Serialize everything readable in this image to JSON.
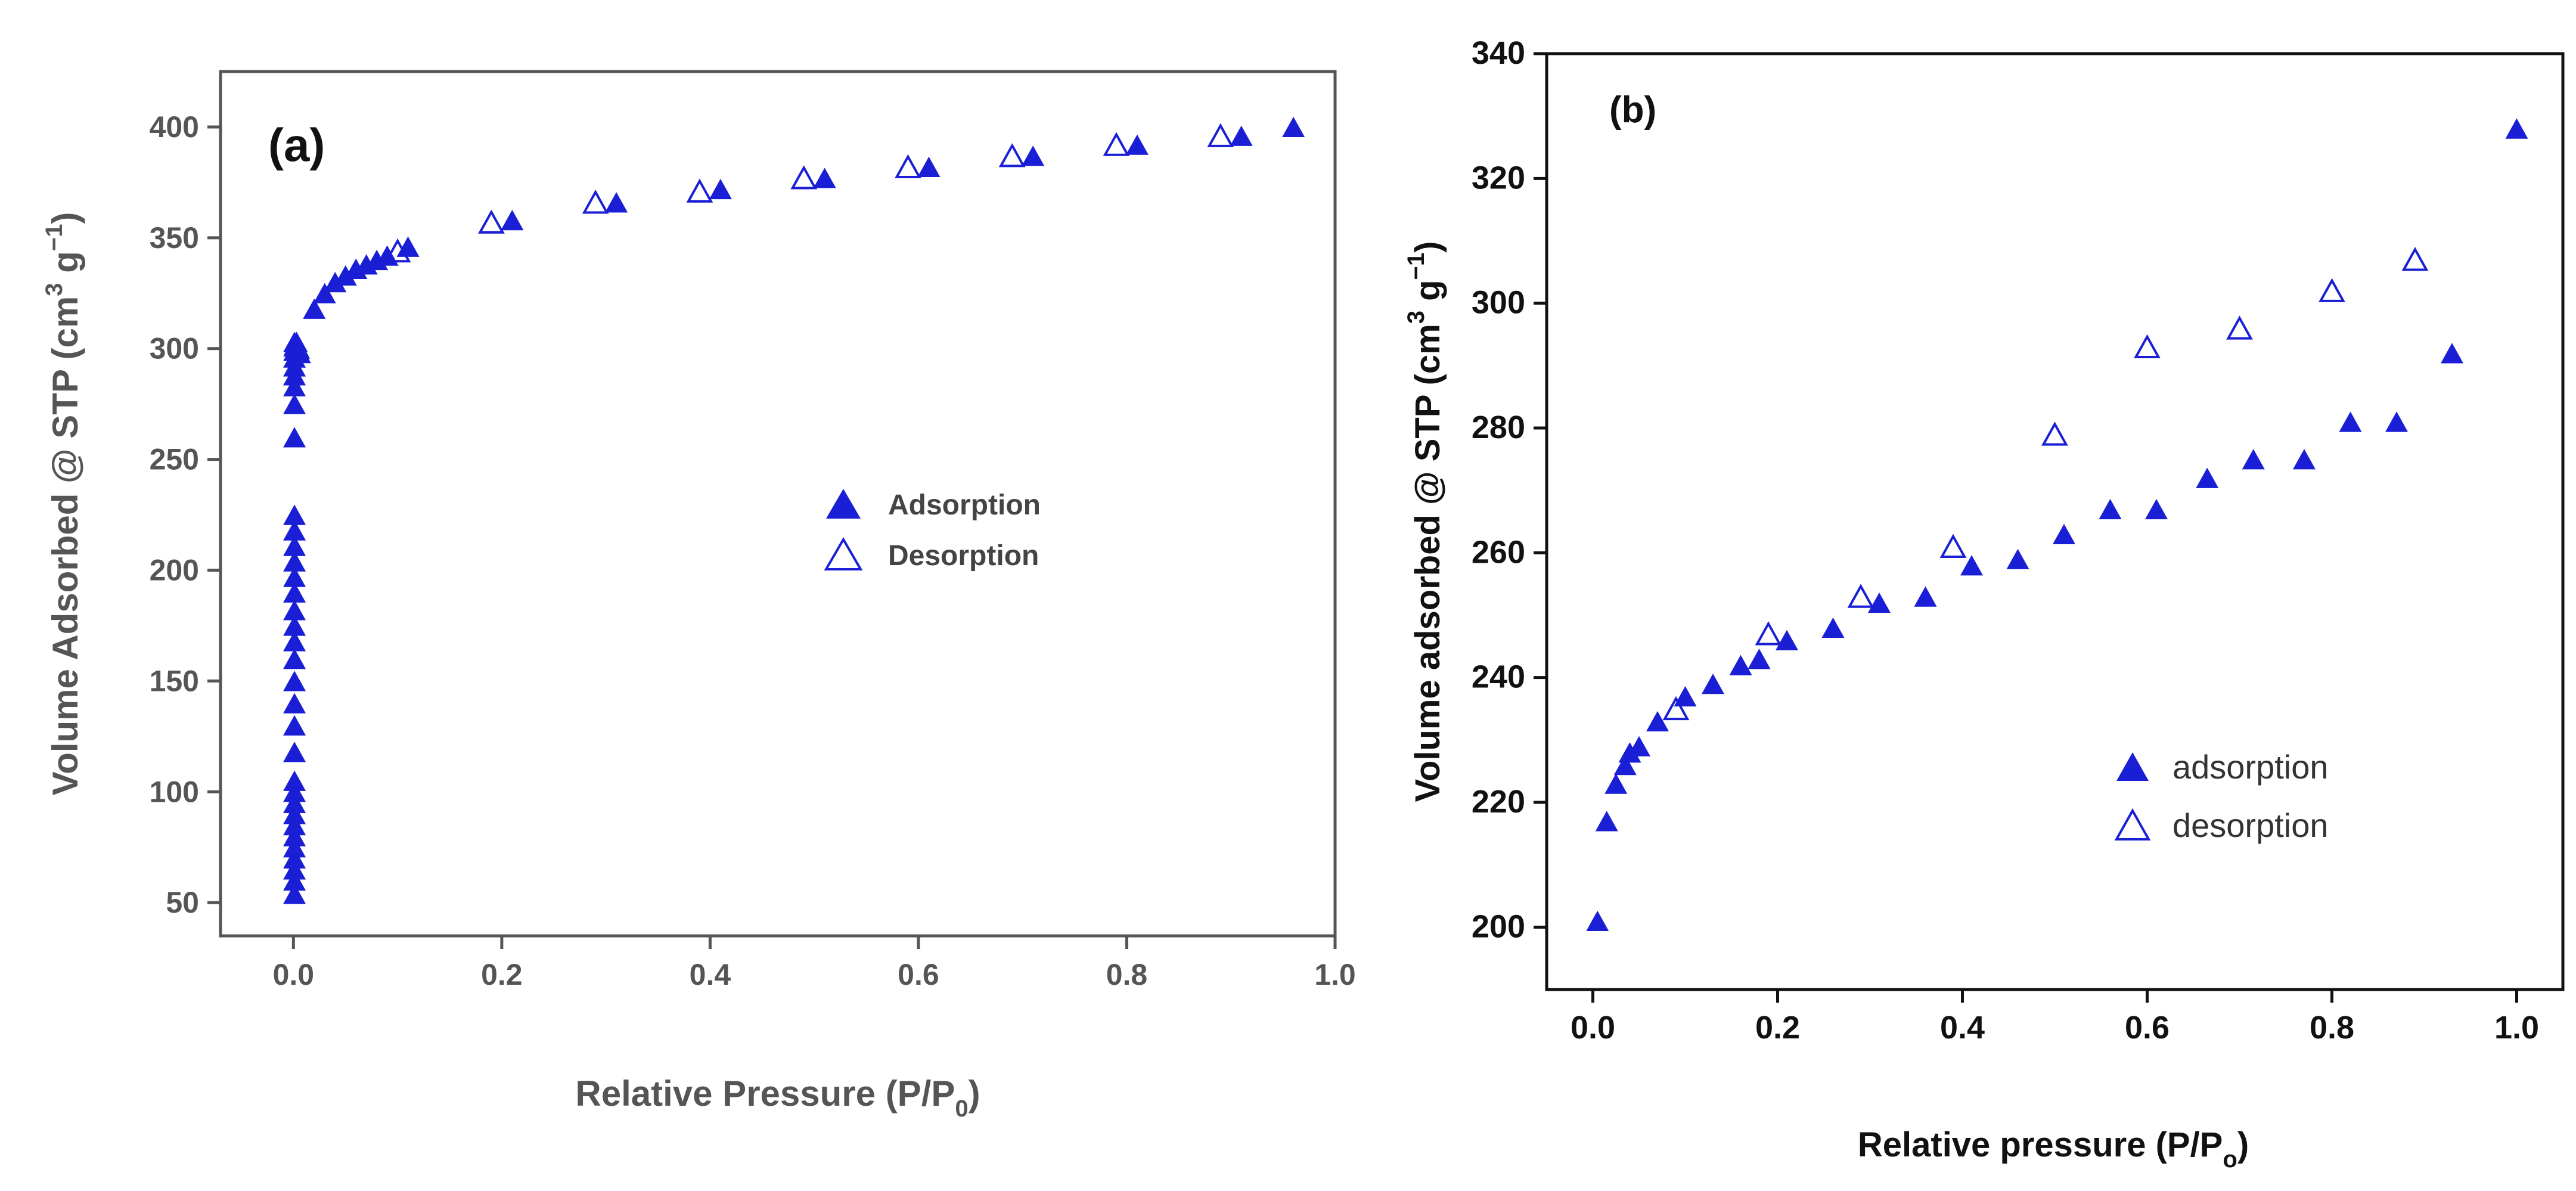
{
  "colors": {
    "marker": "#1a1fd6",
    "axis_a": "#555555",
    "axis_b": "#111111"
  },
  "chart_data": [
    {
      "type": "scatter",
      "panel_label": "(a)",
      "title": "",
      "xlabel": "Relative Pressure (P/P",
      "xlabel_sub": "0",
      "xlabel_end": ")",
      "ylabel": "Volume Adsorbed @ STP (cm",
      "ylabel_sup1": "3",
      "ylabel_mid": " g",
      "ylabel_sup2": "−1",
      "ylabel_end": ")",
      "xlim": [
        -0.07,
        1.0
      ],
      "ylim": [
        35,
        425
      ],
      "xticks": [
        "0.0",
        "0.2",
        "0.4",
        "0.6",
        "0.8",
        "1.0"
      ],
      "xtick_values": [
        0,
        0.2,
        0.4,
        0.6,
        0.8,
        1.0
      ],
      "yticks": [
        "50",
        "100",
        "150",
        "200",
        "250",
        "300",
        "350",
        "400"
      ],
      "ytick_values": [
        50,
        100,
        150,
        200,
        250,
        300,
        350,
        400
      ],
      "legend": [
        "Adsorption",
        "Desorption"
      ],
      "series": [
        {
          "name": "Adsorption",
          "marker": "filled-triangle",
          "x": [
            0.001,
            0.001,
            0.001,
            0.001,
            0.001,
            0.001,
            0.001,
            0.001,
            0.001,
            0.001,
            0.001,
            0.001,
            0.001,
            0.001,
            0.001,
            0.001,
            0.001,
            0.001,
            0.001,
            0.001,
            0.001,
            0.001,
            0.001,
            0.001,
            0.001,
            0.001,
            0.001,
            0.001,
            0.001,
            0.001,
            0.001,
            0.001,
            0.001,
            0.001,
            0.002,
            0.003,
            0.004,
            0.005,
            0.006,
            0.02,
            0.03,
            0.04,
            0.05,
            0.06,
            0.07,
            0.08,
            0.09,
            0.11,
            0.21,
            0.31,
            0.41,
            0.51,
            0.61,
            0.71,
            0.81,
            0.91,
            0.96
          ],
          "y": [
            54,
            60,
            65,
            70,
            75,
            80,
            85,
            90,
            95,
            100,
            105,
            118,
            130,
            140,
            150,
            160,
            168,
            175,
            182,
            190,
            197,
            204,
            211,
            218,
            225,
            260,
            275,
            283,
            288,
            292,
            296,
            299,
            301,
            303,
            302,
            303,
            301,
            300,
            298,
            318,
            325,
            330,
            333,
            336,
            338,
            340,
            342,
            346,
            358,
            366,
            372,
            377,
            382,
            387,
            392,
            396,
            400
          ]
        },
        {
          "name": "Desorption",
          "marker": "open-triangle",
          "x": [
            0.1,
            0.19,
            0.29,
            0.39,
            0.49,
            0.59,
            0.69,
            0.79,
            0.89
          ],
          "y": [
            344,
            357,
            366,
            371,
            377,
            382,
            387,
            392,
            396
          ]
        }
      ]
    },
    {
      "type": "scatter",
      "panel_label": "(b)",
      "title": "",
      "xlabel": "Relative pressure (P/P",
      "xlabel_sub": "o",
      "xlabel_end": ")",
      "ylabel": "Volume adsorbed @ STP (cm",
      "ylabel_sup1": "3",
      "ylabel_mid": " g",
      "ylabel_sup2": "−1",
      "ylabel_end": ")",
      "xlim": [
        -0.05,
        1.05
      ],
      "ylim": [
        190,
        340
      ],
      "xticks": [
        "0.0",
        "0.2",
        "0.4",
        "0.6",
        "0.8",
        "1.0"
      ],
      "xtick_values": [
        0,
        0.2,
        0.4,
        0.6,
        0.8,
        1.0
      ],
      "yticks": [
        "200",
        "220",
        "240",
        "260",
        "280",
        "300",
        "320",
        "340"
      ],
      "ytick_values": [
        200,
        220,
        240,
        260,
        280,
        300,
        320,
        340
      ],
      "legend": [
        "adsorption",
        "desorption"
      ],
      "series": [
        {
          "name": "adsorption",
          "marker": "filled-triangle",
          "x": [
            0.005,
            0.015,
            0.025,
            0.035,
            0.04,
            0.05,
            0.07,
            0.1,
            0.13,
            0.16,
            0.18,
            0.21,
            0.26,
            0.31,
            0.36,
            0.41,
            0.46,
            0.51,
            0.56,
            0.61,
            0.665,
            0.715,
            0.77,
            0.82,
            0.87,
            0.93,
            1.0
          ],
          "y": [
            201,
            217,
            223,
            226,
            228,
            229,
            233,
            237,
            239,
            242,
            243,
            246,
            248,
            252,
            253,
            258,
            259,
            263,
            267,
            267,
            272,
            275,
            275,
            281,
            281,
            292,
            328
          ]
        },
        {
          "name": "desorption",
          "marker": "open-triangle",
          "x": [
            0.09,
            0.19,
            0.29,
            0.39,
            0.5,
            0.6,
            0.7,
            0.8,
            0.89
          ],
          "y": [
            235,
            247,
            253,
            261,
            279,
            293,
            296,
            302,
            307
          ]
        }
      ]
    }
  ]
}
